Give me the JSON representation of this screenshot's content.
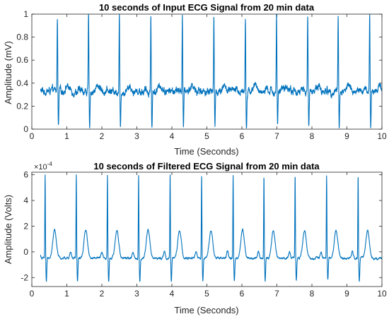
{
  "chart_data": [
    {
      "type": "line",
      "title": "10 seconds of Input ECG Signal from 20 min data",
      "xlabel": "Time (Seconds)",
      "ylabel": "Amplitude (mV)",
      "xlim": [
        0,
        10
      ],
      "ylim": [
        0,
        1
      ],
      "x_ticks": [
        0,
        1,
        2,
        3,
        4,
        5,
        6,
        7,
        8,
        9,
        10
      ],
      "y_ticks": [
        0,
        0.2,
        0.4,
        0.6,
        0.8,
        1
      ],
      "x_tick_labels": [
        "0",
        "1",
        "2",
        "3",
        "4",
        "5",
        "6",
        "7",
        "8",
        "9",
        "10"
      ],
      "y_tick_labels": [
        "0",
        "0.2",
        "0.4",
        "0.6",
        "0.8",
        "1"
      ],
      "grid": false,
      "series": [
        {
          "color": "#0072BD",
          "t_start": 0.25,
          "t_end": 10,
          "baseline": 0.33,
          "r_peaks_s": [
            0.73,
            1.62,
            2.5,
            3.4,
            4.3,
            5.2,
            6.1,
            6.99,
            7.88,
            8.75,
            9.65
          ],
          "r_peak_value": 1.0,
          "s_trough_value": 0.01,
          "wave_min": 0.26,
          "wave_max": 0.42
        }
      ]
    },
    {
      "type": "line",
      "title": "10 seconds of Filtered ECG Signal from 20 min data",
      "xlabel": "Time (Seconds)",
      "ylabel": "Amplitude (Volts)",
      "y_exponent_label": "×10",
      "y_exponent_power": "-4",
      "xlim": [
        0,
        10
      ],
      "ylim": [
        -2.7,
        6.2
      ],
      "x_ticks": [
        0,
        1,
        2,
        3,
        4,
        5,
        6,
        7,
        8,
        9,
        10
      ],
      "y_ticks": [
        -2,
        0,
        2,
        4,
        6
      ],
      "x_tick_labels": [
        "0",
        "1",
        "2",
        "3",
        "4",
        "5",
        "6",
        "7",
        "8",
        "9",
        "10"
      ],
      "y_tick_labels": [
        "-2",
        "0",
        "2",
        "4",
        "6"
      ],
      "grid": false,
      "series": [
        {
          "color": "#0072BD",
          "t_start": 0.25,
          "t_end": 10,
          "baseline": -0.5,
          "r_peaks_s": [
            0.38,
            1.27,
            2.16,
            3.05,
            3.95,
            4.85,
            5.75,
            6.63,
            7.52,
            8.42,
            9.32
          ],
          "r_peak_value": 6.0,
          "s_trough_value": -2.3,
          "t_wave_peak": 1.7
        }
      ]
    }
  ]
}
